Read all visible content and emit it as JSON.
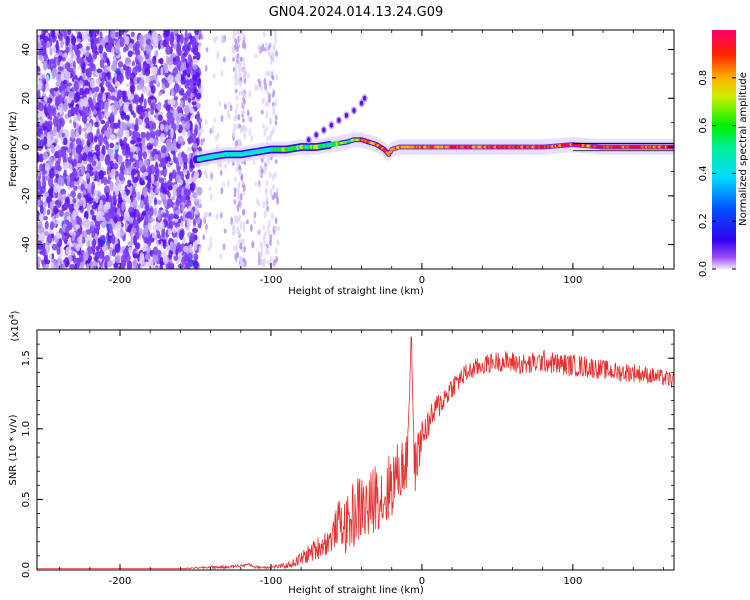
{
  "figure_title": "GN04.2024.014.13.24.G09",
  "colors": {
    "snr_line": "#e53030",
    "frame": "#000000",
    "background": "#ffffff",
    "colormap": [
      "#c9b7f5",
      "#7a3cf5",
      "#3200f0",
      "#0033ff",
      "#00c8ff",
      "#00f0a0",
      "#00f000",
      "#f0f000",
      "#ff9900",
      "#ff0000",
      "#ff0066"
    ]
  },
  "chart_data": [
    {
      "type": "heatmap",
      "title": "GN04.2024.014.13.24.G09",
      "xlabel": "Height of straight line (km)",
      "ylabel": "Frequency (Hz)",
      "xlim": [
        -255,
        167
      ],
      "ylim": [
        -50,
        48
      ],
      "xticks": [
        -200,
        -100,
        0,
        100
      ],
      "yticks": [
        40,
        20,
        0,
        -20,
        -40
      ],
      "xtick_labels": [
        "-200",
        "-100",
        "0",
        "100"
      ],
      "ytick_labels": [
        "40",
        "20",
        "0",
        "-20",
        "-40"
      ],
      "colorbar": {
        "label": "Normalized spectral amplitude",
        "range": [
          0,
          1
        ],
        "ticks": [
          0.0,
          0.2,
          0.4,
          0.6,
          0.8
        ],
        "tick_labels": [
          "0.0",
          "0.2",
          "0.4",
          "0.6",
          "0.8"
        ]
      },
      "ridge": {
        "description_note": "",
        "x": [
          -148,
          -140,
          -130,
          -120,
          -110,
          -100,
          -90,
          -80,
          -70,
          -60,
          -50,
          -45,
          -40,
          -35,
          -30,
          -25,
          -22,
          -20,
          -15,
          -10,
          0,
          20,
          40,
          60,
          80,
          100,
          120,
          140,
          167
        ],
        "y": [
          -5,
          -4,
          -3,
          -3,
          -2,
          -1,
          -1,
          0,
          0,
          1,
          2,
          3,
          3,
          2,
          1,
          -1,
          -3,
          -1,
          0,
          0,
          0,
          0,
          0,
          0,
          0,
          1,
          0,
          0,
          0
        ]
      },
      "streak": {
        "x": [
          -75,
          -70,
          -65,
          -60,
          -55,
          -50,
          -45,
          -40,
          -38
        ],
        "y": [
          3,
          5,
          7,
          9,
          11,
          13,
          15,
          18,
          20
        ]
      }
    },
    {
      "type": "line",
      "title": "",
      "xlabel": "Height of straight line (km)",
      "ylabel": "SNR (10 * v/v)",
      "y_multiplier_label": "(x10",
      "y_multiplier_exp": "4",
      "y_multiplier_close": ")",
      "xlim": [
        -255,
        167
      ],
      "ylim": [
        0,
        1.7
      ],
      "xticks": [
        -200,
        -100,
        0,
        100
      ],
      "yticks": [
        0.0,
        0.5,
        1.0,
        1.5
      ],
      "xtick_labels": [
        "-200",
        "-100",
        "0",
        "100"
      ],
      "ytick_labels": [
        "0.0",
        "0.5",
        "1.0",
        "1.5"
      ],
      "series": [
        {
          "name": "SNR",
          "x": [
            -255,
            -240,
            -220,
            -200,
            -180,
            -160,
            -140,
            -130,
            -120,
            -115,
            -110,
            -100,
            -90,
            -85,
            -80,
            -70,
            -60,
            -55,
            -50,
            -45,
            -40,
            -35,
            -30,
            -25,
            -20,
            -15,
            -10,
            -7,
            -5,
            0,
            5,
            10,
            15,
            20,
            25,
            30,
            40,
            50,
            60,
            70,
            80,
            90,
            100,
            110,
            120,
            130,
            140,
            150,
            160,
            167
          ],
          "values": [
            0.01,
            0.01,
            0.01,
            0.01,
            0.01,
            0.01,
            0.02,
            0.02,
            0.03,
            0.04,
            0.02,
            0.02,
            0.03,
            0.05,
            0.08,
            0.15,
            0.22,
            0.35,
            0.3,
            0.4,
            0.45,
            0.42,
            0.55,
            0.5,
            0.62,
            0.7,
            0.75,
            1.65,
            0.7,
            0.95,
            1.05,
            1.15,
            1.22,
            1.3,
            1.35,
            1.4,
            1.45,
            1.48,
            1.47,
            1.45,
            1.48,
            1.46,
            1.45,
            1.44,
            1.42,
            1.4,
            1.4,
            1.38,
            1.36,
            1.34
          ],
          "noise_amplitude": [
            0.0,
            0.0,
            0.0,
            0.0,
            0.0,
            0.0,
            0.01,
            0.01,
            0.01,
            0.01,
            0.01,
            0.01,
            0.02,
            0.03,
            0.05,
            0.08,
            0.1,
            0.15,
            0.2,
            0.25,
            0.25,
            0.25,
            0.25,
            0.25,
            0.25,
            0.22,
            0.2,
            0.0,
            0.2,
            0.12,
            0.1,
            0.1,
            0.09,
            0.08,
            0.08,
            0.07,
            0.07,
            0.07,
            0.08,
            0.08,
            0.08,
            0.08,
            0.08,
            0.08,
            0.07,
            0.07,
            0.07,
            0.06,
            0.06,
            0.06
          ]
        }
      ]
    }
  ]
}
